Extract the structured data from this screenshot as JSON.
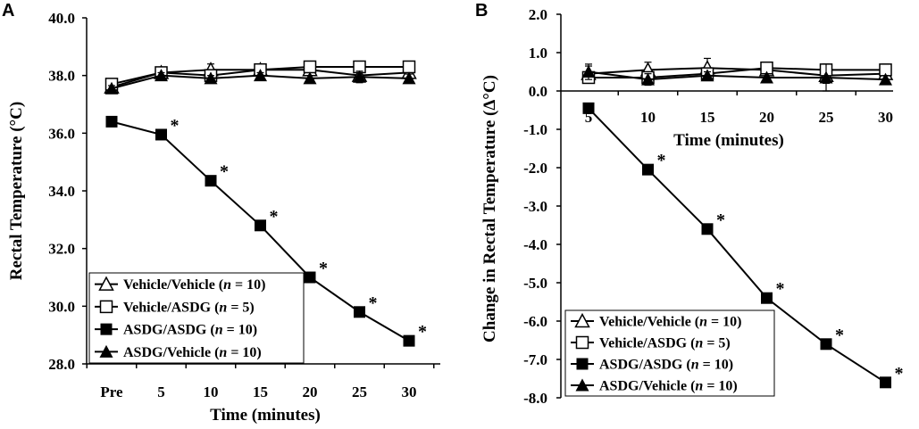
{
  "chart_data": [
    {
      "panel": "A",
      "type": "line",
      "title": "",
      "xlabel": "Time (minutes)",
      "ylabel": "Rectal Temperature (°C)",
      "categories": [
        "Pre",
        "5",
        "10",
        "15",
        "20",
        "25",
        "30"
      ],
      "yticks": [
        "40.0",
        "38.0",
        "36.0",
        "34.0",
        "32.0",
        "30.0",
        "28.0"
      ],
      "ylim": [
        28,
        40
      ],
      "legend_position": "bottom-left",
      "series": [
        {
          "name": "Vehicle/Vehicle",
          "n": "10",
          "marker": "triangle-open",
          "values": [
            37.6,
            38.1,
            38.2,
            38.2,
            38.2,
            38.0,
            38.1
          ],
          "errors": [
            0.1,
            0.15,
            0.2,
            0.15,
            0.15,
            0.15,
            0.15
          ]
        },
        {
          "name": "Vehicle/ASDG",
          "n": "5",
          "marker": "square-open",
          "values": [
            37.7,
            38.1,
            38.0,
            38.2,
            38.3,
            38.3,
            38.3
          ],
          "errors": [
            0.1,
            0.1,
            0.15,
            0.1,
            0.1,
            0.1,
            0.1
          ]
        },
        {
          "name": "ASDG/ASDG",
          "n": "10",
          "marker": "square-filled",
          "values": [
            36.4,
            35.95,
            34.35,
            32.8,
            31.0,
            29.8,
            28.8
          ],
          "errors": [
            0,
            0,
            0,
            0,
            0,
            0,
            0
          ],
          "significant": [
            false,
            true,
            true,
            true,
            true,
            true,
            true
          ]
        },
        {
          "name": "ASDG/Vehicle",
          "n": "10",
          "marker": "triangle-filled",
          "values": [
            37.55,
            38.0,
            37.9,
            38.0,
            37.9,
            37.95,
            37.9
          ],
          "errors": [
            0.1,
            0.1,
            0.1,
            0.1,
            0.1,
            0.2,
            0.15
          ]
        }
      ]
    },
    {
      "panel": "B",
      "type": "line",
      "title": "",
      "xlabel": "Time (minutes)",
      "ylabel": "Change in Rectal Temperature (Δ°C)",
      "categories": [
        "5",
        "10",
        "15",
        "20",
        "25",
        "30"
      ],
      "yticks": [
        "2.0",
        "1.0",
        "0.0",
        "-1.0",
        "-2.0",
        "-3.0",
        "-4.0",
        "-5.0",
        "-6.0",
        "-7.0",
        "-8.0"
      ],
      "ylim": [
        -8,
        2
      ],
      "legend_position": "bottom-left",
      "series": [
        {
          "name": "Vehicle/Vehicle",
          "n": "10",
          "marker": "triangle-open",
          "values": [
            0.45,
            0.55,
            0.6,
            0.55,
            0.4,
            0.45
          ],
          "errors": [
            0.2,
            0.2,
            0.25,
            0.2,
            0.2,
            0.2
          ]
        },
        {
          "name": "Vehicle/ASDG",
          "n": "5",
          "marker": "square-open",
          "values": [
            0.35,
            0.35,
            0.45,
            0.6,
            0.55,
            0.55
          ],
          "errors": [
            0.1,
            0.1,
            0.1,
            0.15,
            0.15,
            0.15
          ]
        },
        {
          "name": "ASDG/ASDG",
          "n": "10",
          "marker": "square-filled",
          "values": [
            -0.45,
            -2.05,
            -3.6,
            -5.4,
            -6.6,
            -7.6
          ],
          "errors": [
            0,
            0,
            0.1,
            0,
            0,
            0
          ],
          "significant": [
            false,
            true,
            true,
            true,
            true,
            true
          ]
        },
        {
          "name": "ASDG/Vehicle",
          "n": "10",
          "marker": "triangle-filled",
          "values": [
            0.5,
            0.3,
            0.4,
            0.35,
            0.35,
            0.3
          ],
          "errors": [
            0.2,
            0.15,
            0.1,
            0.1,
            0.35,
            0.1
          ]
        }
      ]
    }
  ]
}
